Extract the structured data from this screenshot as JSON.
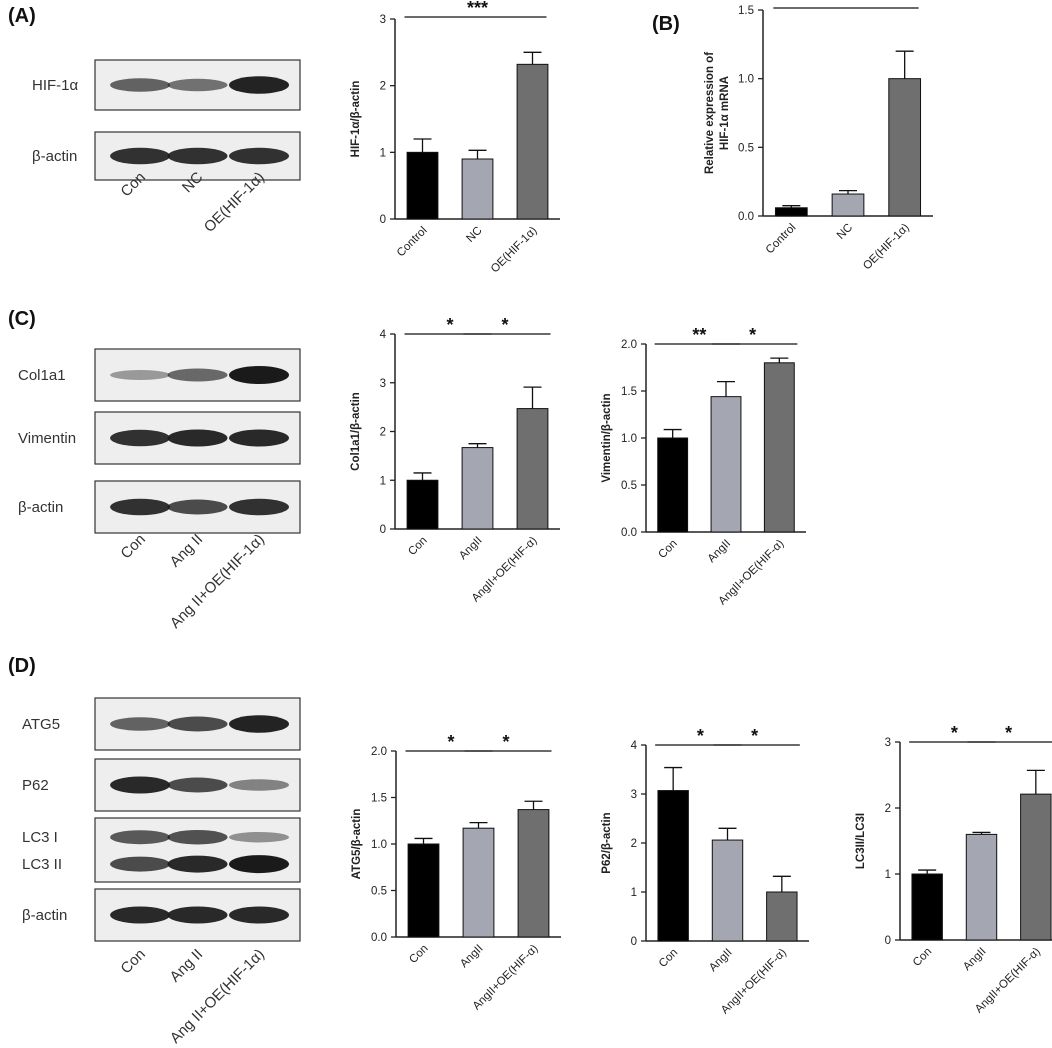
{
  "panels": {
    "A": "(A)",
    "B": "(B)",
    "C": "(C)",
    "D": "(D)"
  },
  "colors": {
    "control": "#000000",
    "nc": "#a4a7b2",
    "oe": "#6f6f6f",
    "band": "#1a1a1a",
    "blot_bg": "#eeeeee"
  },
  "blots": {
    "A": {
      "rows": [
        "HIF-1α",
        "β-actin"
      ],
      "lanes": [
        "Con",
        "NC",
        "OE(HIF-1α)"
      ]
    },
    "C": {
      "rows": [
        "Col1a1",
        "Vimentin",
        "β-actin"
      ],
      "lanes": [
        "Con",
        "Ang II",
        "Ang II+OE(HIF-1α)"
      ]
    },
    "D": {
      "rows": [
        "ATG5",
        "P62",
        "LC3 I",
        "LC3 II",
        "β-actin"
      ],
      "lanes": [
        "Con",
        "Ang II",
        "Ang II+OE(HIF-1α)"
      ]
    }
  },
  "chart_data": [
    {
      "id": "A-hif",
      "type": "bar",
      "categories": [
        "Control",
        "NC",
        "OE(HIF-1α)"
      ],
      "values": [
        1.0,
        0.9,
        2.32
      ],
      "errors": [
        0.2,
        0.13,
        0.18
      ],
      "ylabel": "HIF-1α/β-actin",
      "ylim": [
        0,
        3
      ],
      "ticks": [
        0,
        1,
        2,
        3
      ],
      "tick_labels": [
        "0",
        "1",
        "2",
        "3"
      ],
      "significance": [
        {
          "from": 0,
          "to": 2,
          "label": "***"
        }
      ]
    },
    {
      "id": "B-mrna",
      "type": "bar",
      "categories": [
        "Control",
        "NC",
        "OE(HIF-1α)"
      ],
      "values": [
        0.06,
        0.16,
        1.0
      ],
      "errors": [
        0.015,
        0.025,
        0.2
      ],
      "ylabel": "Relative expression of HIF-1α mRNA",
      "ylabel_lines": [
        "Relative expression of",
        "HIF-1α mRNA"
      ],
      "ylim": [
        0,
        1.5
      ],
      "ticks": [
        0,
        0.5,
        1.0,
        1.5
      ],
      "tick_labels": [
        "0.0",
        "0.5",
        "1.0",
        "1.5"
      ],
      "significance": [
        {
          "from": 0,
          "to": 2,
          "label": "***"
        }
      ]
    },
    {
      "id": "C-col",
      "type": "bar",
      "categories": [
        "Con",
        "AngII",
        "AngII+OE(HIF-α)"
      ],
      "values": [
        1.0,
        1.67,
        2.47
      ],
      "errors": [
        0.15,
        0.08,
        0.44
      ],
      "ylabel": "Col1a1/β-actin",
      "ylim": [
        0,
        4
      ],
      "ticks": [
        0,
        1,
        2,
        3,
        4
      ],
      "tick_labels": [
        "0",
        "1",
        "2",
        "3",
        "4"
      ],
      "significance": [
        {
          "from": 0,
          "to": 1,
          "label": "*"
        },
        {
          "from": 1,
          "to": 2,
          "label": "*"
        }
      ]
    },
    {
      "id": "C-vim",
      "type": "bar",
      "categories": [
        "Con",
        "AngII",
        "AngII+OE(HIF-α)"
      ],
      "values": [
        1.0,
        1.44,
        1.8
      ],
      "errors": [
        0.09,
        0.16,
        0.05
      ],
      "ylabel": "Vimentin/β-actin",
      "ylim": [
        0,
        2
      ],
      "ticks": [
        0,
        0.5,
        1.0,
        1.5,
        2.0
      ],
      "tick_labels": [
        "0.0",
        "0.5",
        "1.0",
        "1.5",
        "2.0"
      ],
      "significance": [
        {
          "from": 0,
          "to": 1,
          "label": "**"
        },
        {
          "from": 1,
          "to": 2,
          "label": "*"
        }
      ]
    },
    {
      "id": "D-atg5",
      "type": "bar",
      "categories": [
        "Con",
        "AngII",
        "AngII+OE(HIF-α)"
      ],
      "values": [
        1.0,
        1.17,
        1.37
      ],
      "errors": [
        0.06,
        0.06,
        0.09
      ],
      "ylabel": "ATG5/β-actin",
      "ylim": [
        0,
        2
      ],
      "ticks": [
        0,
        0.5,
        1.0,
        1.5,
        2.0
      ],
      "tick_labels": [
        "0.0",
        "0.5",
        "1.0",
        "1.5",
        "2.0"
      ],
      "significance": [
        {
          "from": 0,
          "to": 1,
          "label": "*"
        },
        {
          "from": 1,
          "to": 2,
          "label": "*"
        }
      ]
    },
    {
      "id": "D-p62",
      "type": "bar",
      "categories": [
        "Con",
        "AngII",
        "AngII+OE(HIF-α)"
      ],
      "values": [
        3.07,
        2.06,
        1.0
      ],
      "errors": [
        0.47,
        0.24,
        0.32
      ],
      "ylabel": "P62/β-actin",
      "ylim": [
        0,
        4
      ],
      "ticks": [
        0,
        1,
        2,
        3,
        4
      ],
      "tick_labels": [
        "0",
        "1",
        "2",
        "3",
        "4"
      ],
      "significance": [
        {
          "from": 0,
          "to": 1,
          "label": "*"
        },
        {
          "from": 1,
          "to": 2,
          "label": "*"
        }
      ]
    },
    {
      "id": "D-lc3",
      "type": "bar",
      "categories": [
        "Con",
        "AngII",
        "AngII+OE(HIF-α)"
      ],
      "values": [
        1.0,
        1.6,
        2.21
      ],
      "errors": [
        0.06,
        0.03,
        0.36
      ],
      "ylabel": "LC3II/LC3I",
      "ylim": [
        0,
        3
      ],
      "ticks": [
        0,
        1,
        2,
        3
      ],
      "tick_labels": [
        "0",
        "1",
        "2",
        "3"
      ],
      "significance": [
        {
          "from": 0,
          "to": 1,
          "label": "*"
        },
        {
          "from": 1,
          "to": 2,
          "label": "*"
        }
      ]
    }
  ]
}
